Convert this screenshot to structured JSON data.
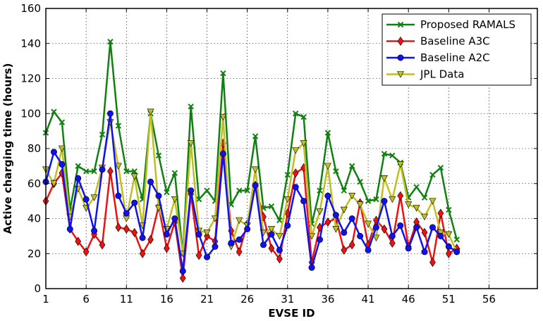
{
  "chart_data": {
    "type": "line",
    "title": "",
    "xlabel": "EVSE ID",
    "ylabel": "Active charging time (hours)",
    "xlim": [
      1,
      62
    ],
    "ylim": [
      0,
      160
    ],
    "xticks": [
      1,
      6,
      11,
      16,
      21,
      26,
      31,
      36,
      41,
      46,
      51,
      56
    ],
    "yticks": [
      0,
      20,
      40,
      60,
      80,
      100,
      120,
      140,
      160
    ],
    "grid": true,
    "legend_position": "top-right",
    "x": [
      1,
      2,
      3,
      4,
      5,
      6,
      7,
      8,
      9,
      10,
      11,
      12,
      13,
      14,
      15,
      16,
      17,
      18,
      19,
      20,
      21,
      22,
      23,
      24,
      25,
      26,
      27,
      28,
      29,
      30,
      31,
      32,
      33,
      34,
      35,
      36,
      37,
      38,
      39,
      40,
      41,
      42,
      43,
      44,
      45,
      46,
      47,
      48,
      49,
      50,
      51,
      52
    ],
    "series": [
      {
        "name": "Proposed RAMALS",
        "color": "#118011",
        "marker": "x",
        "values": [
          89,
          101,
          95,
          45,
          70,
          67,
          67,
          88,
          141,
          93,
          67,
          67,
          51,
          100,
          76,
          55,
          66,
          20,
          104,
          51,
          56,
          50,
          123,
          48,
          56,
          56,
          87,
          46,
          47,
          39,
          65,
          100,
          98,
          37,
          56,
          89,
          67,
          56,
          70,
          61,
          50,
          51,
          77,
          76,
          72,
          52,
          58,
          52,
          65,
          69,
          45,
          28
        ]
      },
      {
        "name": "Baseline A3C",
        "color": "#ee1111",
        "marker": "diamond",
        "values": [
          50,
          60,
          66,
          34,
          27,
          21,
          31,
          25,
          67,
          35,
          34,
          32,
          20,
          28,
          47,
          23,
          38,
          6,
          54,
          19,
          30,
          27,
          83,
          33,
          21,
          37,
          59,
          41,
          23,
          17,
          43,
          66,
          69,
          15,
          35,
          38,
          40,
          22,
          25,
          49,
          25,
          39,
          34,
          26,
          53,
          24,
          38,
          32,
          15,
          43,
          20,
          23
        ]
      },
      {
        "name": "Baseline A2C",
        "color": "#1111ee",
        "marker": "circle",
        "values": [
          61,
          78,
          71,
          34,
          63,
          51,
          33,
          68,
          100,
          53,
          43,
          49,
          29,
          61,
          53,
          31,
          40,
          10,
          56,
          31,
          18,
          24,
          77,
          26,
          28,
          34,
          59,
          25,
          31,
          22,
          36,
          58,
          50,
          12,
          28,
          53,
          42,
          32,
          40,
          30,
          22,
          35,
          50,
          30,
          36,
          23,
          35,
          21,
          35,
          30,
          24,
          21
        ]
      },
      {
        "name": "JPL Data",
        "color": "#bfbf22",
        "marker": "triangle-down",
        "values": [
          68,
          60,
          80,
          41,
          57,
          46,
          52,
          69,
          95,
          70,
          40,
          64,
          36,
          101,
          46,
          34,
          51,
          20,
          83,
          33,
          32,
          40,
          98,
          24,
          39,
          36,
          68,
          32,
          34,
          30,
          51,
          79,
          83,
          30,
          44,
          70,
          34,
          45,
          53,
          48,
          37,
          29,
          63,
          51,
          71,
          48,
          46,
          41,
          50,
          32,
          31,
          21
        ]
      }
    ]
  }
}
